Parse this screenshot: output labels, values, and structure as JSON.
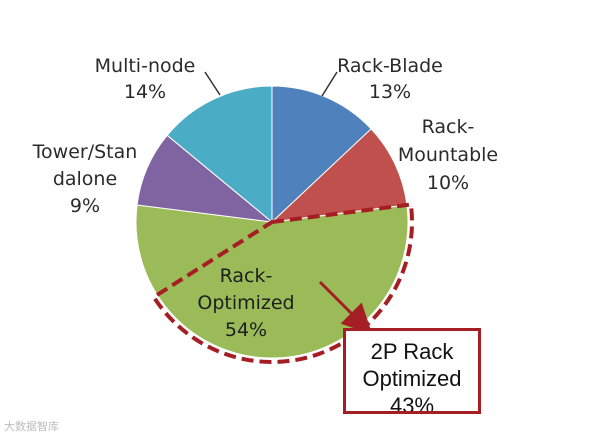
{
  "chart_data": {
    "type": "pie",
    "slices": [
      {
        "label": "Rack-Blade",
        "pct_text": "13%",
        "value": 13,
        "color": "#4f81bd"
      },
      {
        "label": "Rack-Mountable",
        "pct_text": "10%",
        "value": 10,
        "color": "#c0504d"
      },
      {
        "label": "Rack-Optimized",
        "pct_text": "54%",
        "value": 54,
        "color": "#9bbb59"
      },
      {
        "label": "Tower/Standalone",
        "pct_text": "9%",
        "value": 9,
        "color": "#8064a2"
      },
      {
        "label": "Multi-node",
        "pct_text": "14%",
        "value": 14,
        "color": "#4bacc6"
      }
    ],
    "highlight": {
      "label": "2P Rack Optimized",
      "value": 43,
      "color": "#a51e23"
    }
  },
  "labels": {
    "rack_blade": {
      "line1": "Rack-Blade",
      "line2": "13%"
    },
    "rack_mountable": {
      "line1": "Rack-",
      "line2": "Mountable",
      "line3": "10%"
    },
    "tower": {
      "line1": "Tower/Stan",
      "line2": "dalone",
      "line3": "9%"
    },
    "multi_node": {
      "line1": "Multi-node",
      "line2": "14%"
    },
    "rack_optimized": {
      "line1": "Rack-",
      "line2": "Optimized",
      "line3": "54%"
    }
  },
  "callout": {
    "line1": "2P Rack",
    "line2": "Optimized",
    "line3": "43%"
  },
  "watermark": "大数据智库"
}
